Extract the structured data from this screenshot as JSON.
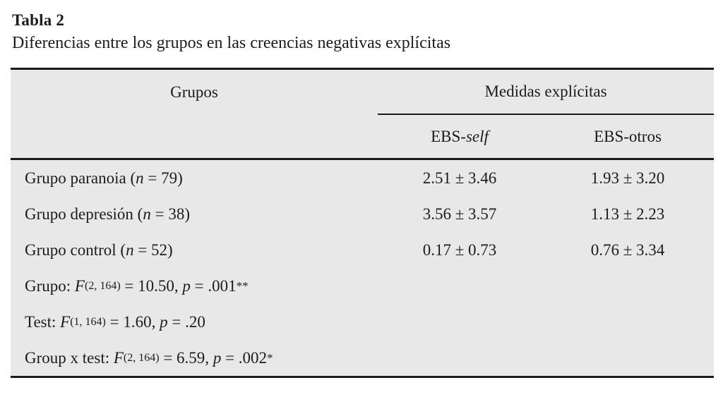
{
  "document": {
    "table_label": "Tabla 2",
    "caption": "Diferencias entre los grupos en las creencias negativas explícitas"
  },
  "table": {
    "header": {
      "groups": "Grupos",
      "measures": "Medidas explícitas",
      "col_self_prefix": "EBS-",
      "col_self_italic": "self",
      "col_otros": "EBS-otros"
    },
    "rows": [
      {
        "label_pre": "Grupo paranoia (",
        "label_n": "n",
        "label_post": " = 79)",
        "ebs_self": "2.51 ± 3.46",
        "ebs_otros": "1.93 ± 3.20"
      },
      {
        "label_pre": "Grupo depresión (",
        "label_n": "n",
        "label_post": " = 38)",
        "ebs_self": "3.56 ± 3.57",
        "ebs_otros": "1.13 ± 2.23"
      },
      {
        "label_pre": "Grupo control (",
        "label_n": "n",
        "label_post": " = 52)",
        "ebs_self": "0.17 ± 0.73",
        "ebs_otros": "0.76 ± 3.34"
      }
    ],
    "stats": [
      {
        "prefix": "Grupo: ",
        "f": "F",
        "df": "(2, 164)",
        "mid": " = 10.50, ",
        "p": "p",
        "pval": " = .001",
        "sig": "**"
      },
      {
        "prefix": "Test: ",
        "f": "F",
        "df": "(1, 164)",
        "mid": " = 1.60, ",
        "p": "p",
        "pval": " = .20",
        "sig": ""
      },
      {
        "prefix": "Group x test: ",
        "f": "F",
        "df": "(2, 164)",
        "mid": " = 6.59, ",
        "p": "p",
        "pval": " = .002",
        "sig": "*"
      }
    ]
  },
  "colors": {
    "table_background": "#e8e8e8",
    "rule": "#1a1a1a",
    "text": "#1c1c1c",
    "page_background": "#ffffff"
  }
}
